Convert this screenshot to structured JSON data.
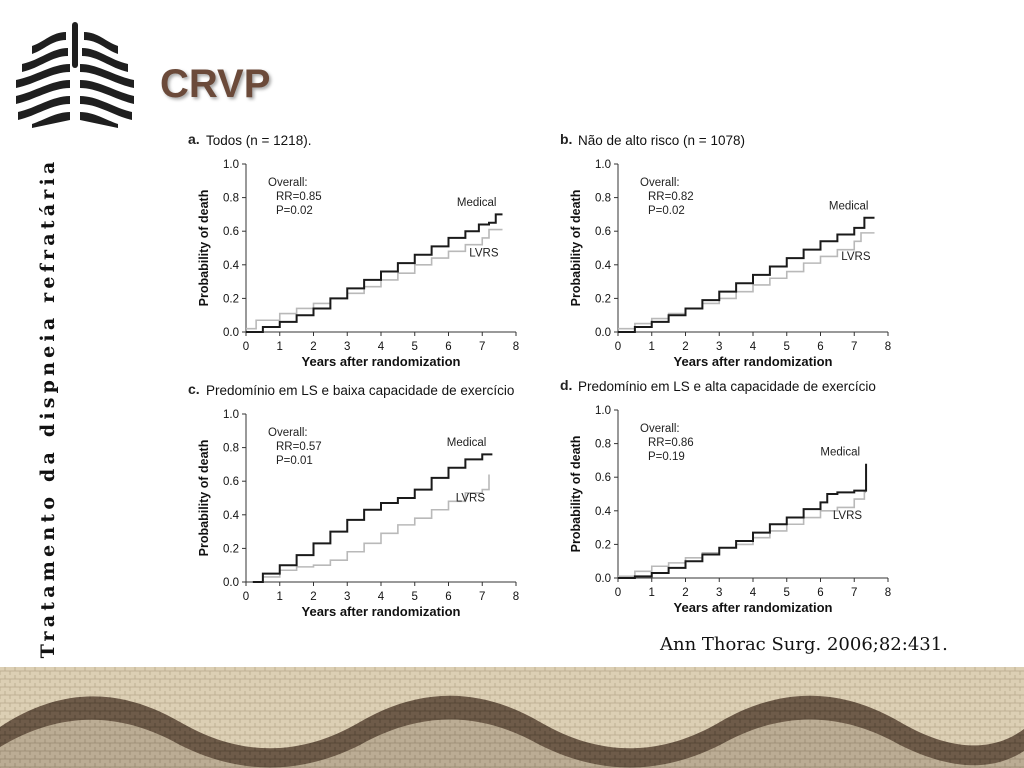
{
  "header": {
    "title": "CRVP"
  },
  "sidebar": {
    "vertical_text": "Tratamento da dispneia refratária"
  },
  "citation": "Ann Thorac Surg. 2006;82:431.",
  "colors": {
    "title": "#6b4a3a",
    "medical": "#1a1a1a",
    "lvrs": "#b9b9b9",
    "mosaic_dark": "#5b4636",
    "mosaic_light": "#d8cbb0"
  },
  "chart_data": [
    {
      "type": "line",
      "panel_letter": "a.",
      "title": "Todos (n = 1218).",
      "xlabel": "Years after randomization",
      "ylabel": "Probability of death",
      "xlim": [
        0,
        8
      ],
      "ylim": [
        0,
        1.0
      ],
      "xticks": [
        "0",
        "1",
        "2",
        "3",
        "4",
        "5",
        "6",
        "7",
        "8"
      ],
      "yticks": [
        "0.0",
        "0.2",
        "0.4",
        "0.6",
        "0.8",
        "1.0"
      ],
      "overall": "Overall:",
      "rr": "RR=0.85",
      "p": "P=0.02",
      "series": [
        {
          "name": "Medical",
          "points": [
            [
              0,
              0
            ],
            [
              0.5,
              0.03
            ],
            [
              1,
              0.06
            ],
            [
              1.5,
              0.1
            ],
            [
              2,
              0.14
            ],
            [
              2.5,
              0.2
            ],
            [
              3,
              0.26
            ],
            [
              3.5,
              0.31
            ],
            [
              4,
              0.36
            ],
            [
              4.5,
              0.41
            ],
            [
              5,
              0.46
            ],
            [
              5.5,
              0.51
            ],
            [
              6,
              0.56
            ],
            [
              6.5,
              0.6
            ],
            [
              6.9,
              0.64
            ],
            [
              7.2,
              0.65
            ],
            [
              7.4,
              0.7
            ],
            [
              7.6,
              0.7
            ]
          ]
        },
        {
          "name": "LVRS",
          "points": [
            [
              0,
              0.02
            ],
            [
              0.3,
              0.07
            ],
            [
              1,
              0.11
            ],
            [
              1.5,
              0.14
            ],
            [
              2,
              0.17
            ],
            [
              2.5,
              0.2
            ],
            [
              3,
              0.23
            ],
            [
              3.5,
              0.27
            ],
            [
              4,
              0.31
            ],
            [
              4.5,
              0.35
            ],
            [
              5,
              0.4
            ],
            [
              5.5,
              0.44
            ],
            [
              6,
              0.48
            ],
            [
              6.5,
              0.52
            ],
            [
              7,
              0.56
            ],
            [
              7.2,
              0.61
            ],
            [
              7.6,
              0.61
            ]
          ]
        }
      ]
    },
    {
      "type": "line",
      "panel_letter": "b.",
      "title": "Não de alto risco (n = 1078)",
      "xlabel": "Years after randomization",
      "ylabel": "Probability of death",
      "xlim": [
        0,
        8
      ],
      "ylim": [
        0,
        1.0
      ],
      "xticks": [
        "0",
        "1",
        "2",
        "3",
        "4",
        "5",
        "6",
        "7",
        "8"
      ],
      "yticks": [
        "0.0",
        "0.2",
        "0.4",
        "0.6",
        "0.8",
        "1.0"
      ],
      "overall": "Overall:",
      "rr": "RR=0.82",
      "p": "P=0.02",
      "series": [
        {
          "name": "Medical",
          "points": [
            [
              0,
              0
            ],
            [
              0.5,
              0.03
            ],
            [
              1,
              0.06
            ],
            [
              1.5,
              0.1
            ],
            [
              2,
              0.14
            ],
            [
              2.5,
              0.19
            ],
            [
              3,
              0.24
            ],
            [
              3.5,
              0.29
            ],
            [
              4,
              0.34
            ],
            [
              4.5,
              0.39
            ],
            [
              5,
              0.44
            ],
            [
              5.5,
              0.49
            ],
            [
              6,
              0.54
            ],
            [
              6.5,
              0.58
            ],
            [
              7,
              0.62
            ],
            [
              7.3,
              0.68
            ],
            [
              7.6,
              0.68
            ]
          ]
        },
        {
          "name": "LVRS",
          "points": [
            [
              0,
              0.02
            ],
            [
              0.5,
              0.05
            ],
            [
              1,
              0.08
            ],
            [
              1.5,
              0.11
            ],
            [
              2,
              0.14
            ],
            [
              2.5,
              0.17
            ],
            [
              3,
              0.2
            ],
            [
              3.5,
              0.24
            ],
            [
              4,
              0.28
            ],
            [
              4.5,
              0.32
            ],
            [
              5,
              0.36
            ],
            [
              5.5,
              0.41
            ],
            [
              6,
              0.45
            ],
            [
              6.5,
              0.49
            ],
            [
              7,
              0.54
            ],
            [
              7.2,
              0.59
            ],
            [
              7.6,
              0.59
            ]
          ]
        }
      ]
    },
    {
      "type": "line",
      "panel_letter": "c.",
      "title": "Predomínio em LS e baixa capacidade de exercício",
      "xlabel": "Years after randomization",
      "ylabel": "Probability of death",
      "xlim": [
        0,
        8
      ],
      "ylim": [
        0,
        1.0
      ],
      "xticks": [
        "0",
        "1",
        "2",
        "3",
        "4",
        "5",
        "6",
        "7",
        "8"
      ],
      "yticks": [
        "0.0",
        "0.2",
        "0.4",
        "0.6",
        "0.8",
        "1.0"
      ],
      "overall": "Overall:",
      "rr": "RR=0.57",
      "p": "P=0.01",
      "series": [
        {
          "name": "Medical",
          "points": [
            [
              0.2,
              0
            ],
            [
              0.5,
              0.05
            ],
            [
              1,
              0.1
            ],
            [
              1.5,
              0.16
            ],
            [
              2,
              0.23
            ],
            [
              2.5,
              0.3
            ],
            [
              3,
              0.37
            ],
            [
              3.5,
              0.43
            ],
            [
              4,
              0.47
            ],
            [
              4.5,
              0.5
            ],
            [
              5,
              0.55
            ],
            [
              5.5,
              0.62
            ],
            [
              6,
              0.68
            ],
            [
              6.5,
              0.73
            ],
            [
              7,
              0.76
            ],
            [
              7.3,
              0.76
            ]
          ]
        },
        {
          "name": "LVRS",
          "points": [
            [
              0.2,
              0
            ],
            [
              0.5,
              0.03
            ],
            [
              1,
              0.07
            ],
            [
              1.5,
              0.09
            ],
            [
              2,
              0.1
            ],
            [
              2.5,
              0.13
            ],
            [
              3,
              0.18
            ],
            [
              3.5,
              0.23
            ],
            [
              4,
              0.29
            ],
            [
              4.5,
              0.34
            ],
            [
              5,
              0.38
            ],
            [
              5.5,
              0.43
            ],
            [
              6,
              0.48
            ],
            [
              6.5,
              0.53
            ],
            [
              7,
              0.55
            ],
            [
              7.2,
              0.64
            ],
            [
              7.2,
              0.64
            ]
          ]
        }
      ]
    },
    {
      "type": "line",
      "panel_letter": "d.",
      "title": "Predomínio em LS e alta capacidade de exercício",
      "xlabel": "Years after randomization",
      "ylabel": "Probability of death",
      "xlim": [
        0,
        8
      ],
      "ylim": [
        0,
        1.0
      ],
      "xticks": [
        "0",
        "1",
        "2",
        "3",
        "4",
        "5",
        "6",
        "7",
        "8"
      ],
      "yticks": [
        "0.0",
        "0.2",
        "0.4",
        "0.6",
        "0.8",
        "1.0"
      ],
      "overall": "Overall:",
      "rr": "RR=0.86",
      "p": "P=0.19",
      "series": [
        {
          "name": "Medical",
          "points": [
            [
              0,
              0
            ],
            [
              0.5,
              0.01
            ],
            [
              1,
              0.03
            ],
            [
              1.5,
              0.06
            ],
            [
              2,
              0.1
            ],
            [
              2.5,
              0.14
            ],
            [
              3,
              0.18
            ],
            [
              3.5,
              0.22
            ],
            [
              4,
              0.27
            ],
            [
              4.5,
              0.32
            ],
            [
              5,
              0.36
            ],
            [
              5.5,
              0.41
            ],
            [
              6,
              0.45
            ],
            [
              6.2,
              0.5
            ],
            [
              6.5,
              0.51
            ],
            [
              7,
              0.52
            ],
            [
              7.3,
              0.52
            ],
            [
              7.35,
              0.68
            ]
          ]
        },
        {
          "name": "LVRS",
          "points": [
            [
              0,
              0.01
            ],
            [
              0.5,
              0.04
            ],
            [
              1,
              0.07
            ],
            [
              1.5,
              0.09
            ],
            [
              2,
              0.12
            ],
            [
              2.5,
              0.15
            ],
            [
              3,
              0.18
            ],
            [
              3.5,
              0.2
            ],
            [
              4,
              0.24
            ],
            [
              4.5,
              0.28
            ],
            [
              5,
              0.32
            ],
            [
              5.5,
              0.36
            ],
            [
              6,
              0.4
            ],
            [
              6.5,
              0.42
            ],
            [
              7,
              0.47
            ],
            [
              7.3,
              0.51
            ],
            [
              7.35,
              0.51
            ]
          ]
        }
      ]
    }
  ]
}
